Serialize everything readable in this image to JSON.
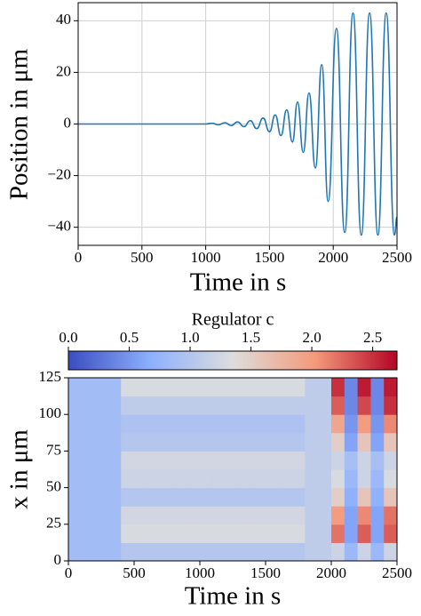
{
  "chart_data": [
    {
      "type": "line",
      "xlabel": "Time in s",
      "ylabel": "Position in μm",
      "x": [
        0,
        1000,
        1050,
        1100,
        1150,
        1200,
        1250,
        1300,
        1350,
        1400,
        1450,
        1500,
        1545,
        1590,
        1635,
        1680,
        1720,
        1765,
        1810,
        1860,
        1910,
        1960,
        2025,
        2090,
        2155,
        2220,
        2285,
        2350,
        2415,
        2480,
        2500
      ],
      "series": [
        {
          "color": "#1f77b4",
          "values": [
            0,
            0,
            0.3,
            -0.3,
            0.5,
            -0.6,
            0.8,
            -1,
            1.3,
            -1.8,
            2.3,
            -3,
            3.5,
            -4.5,
            5.5,
            -7,
            8.5,
            -11,
            12,
            -17,
            23,
            -30,
            37,
            -42,
            43,
            -43,
            43,
            -43,
            43,
            -43,
            -36
          ]
        }
      ],
      "xlim": [
        0,
        2500
      ],
      "xticks": [
        0,
        500,
        1000,
        1500,
        2000,
        2500
      ],
      "ylim": [
        -47,
        47
      ],
      "yticks": [
        {
          "value": -40,
          "label": "−40"
        },
        {
          "value": -20,
          "label": "−20"
        },
        0,
        20,
        40
      ],
      "grid": true
    },
    {
      "type": "heatmap",
      "xlabel": "Time in s",
      "ylabel": "x in μm",
      "colorbar_label": "Regulator c",
      "cmap": "coolwarm",
      "xbins": [
        0,
        100,
        200,
        300,
        400,
        500,
        600,
        700,
        800,
        900,
        1000,
        1100,
        1200,
        1300,
        1400,
        1500,
        1600,
        1700,
        1800,
        1900,
        2000,
        2100,
        2200,
        2300,
        2400,
        2500
      ],
      "ybins": [
        0,
        12.5,
        25,
        37.5,
        50,
        62.5,
        75,
        87.5,
        100,
        112.5,
        125
      ],
      "z": [
        [
          0.85,
          0.85,
          0.85,
          0.85,
          1.0,
          1.0,
          1.0,
          1.0,
          1.0,
          1.0,
          1.0,
          1.0,
          1.0,
          1.0,
          1.0,
          1.0,
          1.0,
          1.0,
          1.1,
          1.1,
          1.2,
          0.8,
          1.2,
          0.8,
          1.2
        ],
        [
          0.85,
          0.85,
          0.85,
          0.85,
          1.3,
          1.3,
          1.3,
          1.3,
          1.3,
          1.3,
          1.3,
          1.3,
          1.3,
          1.3,
          1.3,
          1.3,
          1.3,
          1.3,
          1.1,
          1.1,
          2.2,
          0.6,
          2.3,
          0.6,
          2.3
        ],
        [
          0.85,
          0.85,
          0.85,
          0.85,
          1.25,
          1.25,
          1.25,
          1.25,
          1.25,
          1.25,
          1.25,
          1.25,
          1.25,
          1.25,
          1.25,
          1.25,
          1.25,
          1.25,
          1.1,
          1.1,
          2.0,
          0.6,
          2.1,
          0.6,
          2.2
        ],
        [
          0.85,
          0.85,
          0.85,
          0.85,
          1.0,
          1.0,
          1.0,
          1.0,
          1.0,
          1.0,
          1.0,
          1.0,
          1.0,
          1.0,
          1.0,
          1.0,
          1.0,
          1.0,
          1.1,
          1.1,
          1.5,
          0.7,
          1.6,
          0.7,
          1.6
        ],
        [
          0.85,
          0.85,
          0.85,
          0.85,
          1.2,
          1.2,
          1.2,
          1.2,
          1.2,
          1.2,
          1.2,
          1.2,
          1.2,
          1.2,
          1.2,
          1.2,
          1.2,
          1.2,
          1.1,
          1.1,
          1.3,
          0.8,
          1.2,
          0.8,
          1.3
        ],
        [
          0.85,
          0.85,
          0.85,
          0.85,
          1.25,
          1.25,
          1.25,
          1.25,
          1.25,
          1.25,
          1.25,
          1.25,
          1.25,
          1.25,
          1.25,
          1.25,
          1.25,
          1.25,
          1.1,
          1.1,
          1.2,
          0.9,
          1.2,
          0.9,
          1.2
        ],
        [
          0.85,
          0.85,
          0.85,
          0.85,
          1.0,
          1.0,
          1.0,
          1.0,
          1.0,
          1.0,
          1.0,
          1.0,
          1.0,
          1.0,
          1.0,
          1.0,
          1.0,
          1.0,
          1.1,
          1.1,
          1.5,
          0.6,
          1.6,
          0.6,
          1.6
        ],
        [
          0.85,
          0.85,
          0.85,
          0.85,
          0.95,
          0.95,
          0.95,
          0.95,
          0.95,
          0.95,
          0.95,
          0.95,
          0.95,
          0.95,
          0.95,
          0.95,
          0.95,
          0.95,
          1.1,
          1.1,
          1.9,
          0.5,
          2.0,
          0.5,
          2.1
        ],
        [
          0.85,
          0.85,
          0.85,
          0.85,
          1.1,
          1.1,
          1.1,
          1.1,
          1.1,
          1.1,
          1.1,
          1.1,
          1.1,
          1.1,
          1.1,
          1.1,
          1.1,
          1.1,
          1.1,
          1.1,
          2.3,
          0.4,
          2.4,
          0.4,
          2.5
        ],
        [
          0.85,
          0.85,
          0.85,
          0.85,
          1.3,
          1.3,
          1.3,
          1.3,
          1.3,
          1.3,
          1.3,
          1.3,
          1.3,
          1.3,
          1.3,
          1.3,
          1.3,
          1.3,
          1.1,
          1.1,
          2.5,
          0.4,
          2.6,
          0.4,
          2.6
        ]
      ],
      "xlim": [
        0,
        2500
      ],
      "xticks": [
        0,
        500,
        1000,
        1500,
        2000,
        2500
      ],
      "ylim": [
        0,
        125
      ],
      "yticks": [
        0,
        25,
        50,
        75,
        100,
        125
      ],
      "clim": [
        0,
        2.7
      ],
      "cticks": [
        {
          "value": 0,
          "label": "0.0"
        },
        0.5,
        {
          "value": 1,
          "label": "1.0"
        },
        1.5,
        {
          "value": 2,
          "label": "2.0"
        },
        2.5
      ]
    }
  ]
}
